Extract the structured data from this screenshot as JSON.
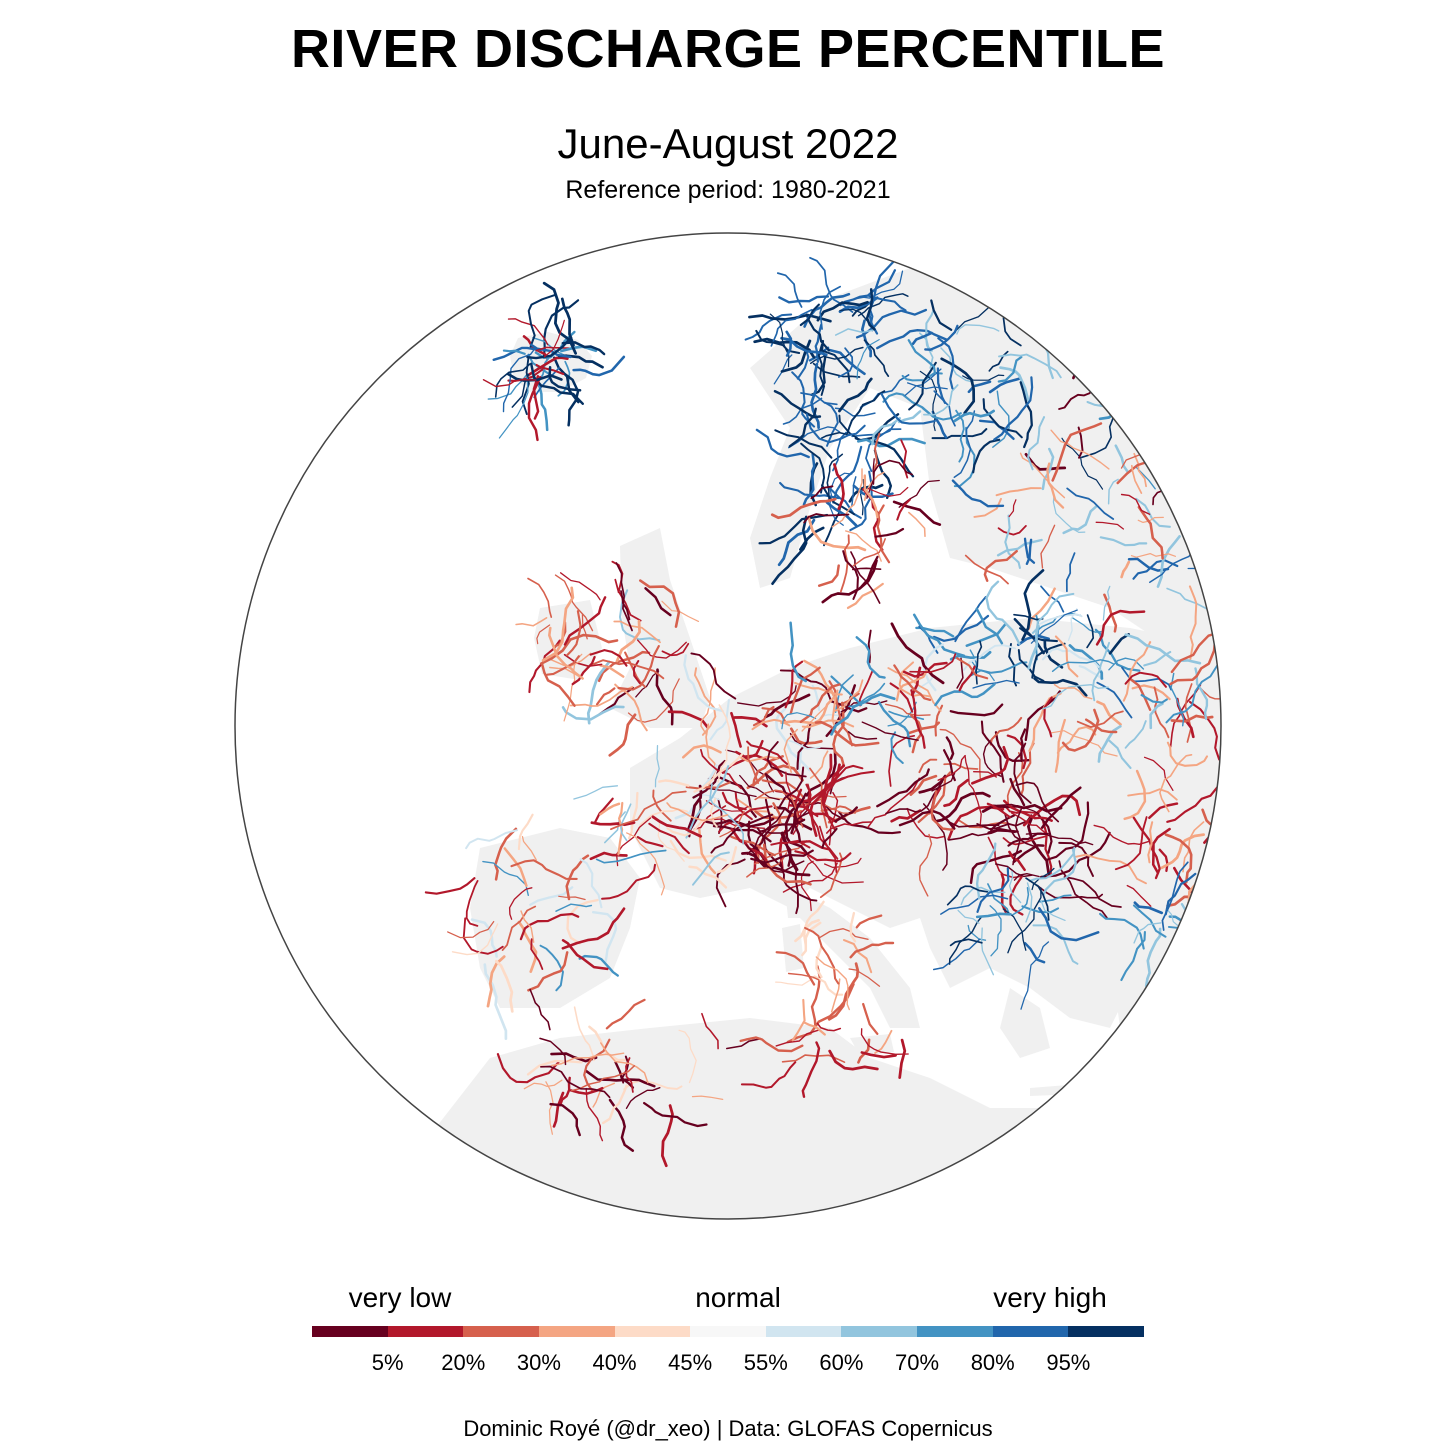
{
  "title": "RIVER DISCHARGE PERCENTILE",
  "subtitle": "June-August 2022",
  "reference": "Reference period: 1980-2021",
  "legend": {
    "low_label": "very low",
    "mid_label": "normal",
    "high_label": "very high",
    "ticks": [
      "5%",
      "20%",
      "30%",
      "40%",
      "45%",
      "55%",
      "60%",
      "70%",
      "80%",
      "95%"
    ],
    "colors": [
      "#67001f",
      "#b2182b",
      "#d6604d",
      "#f4a582",
      "#fddbc7",
      "#f7f7f7",
      "#d1e5f0",
      "#92c5de",
      "#4393c3",
      "#2166ac",
      "#053061"
    ]
  },
  "caption": "Dominic Royé (@dr_xeo) | Data: GLOFAS Copernicus",
  "map": {
    "land_color": "#f0f0f0",
    "outline_color": "#444444"
  }
}
